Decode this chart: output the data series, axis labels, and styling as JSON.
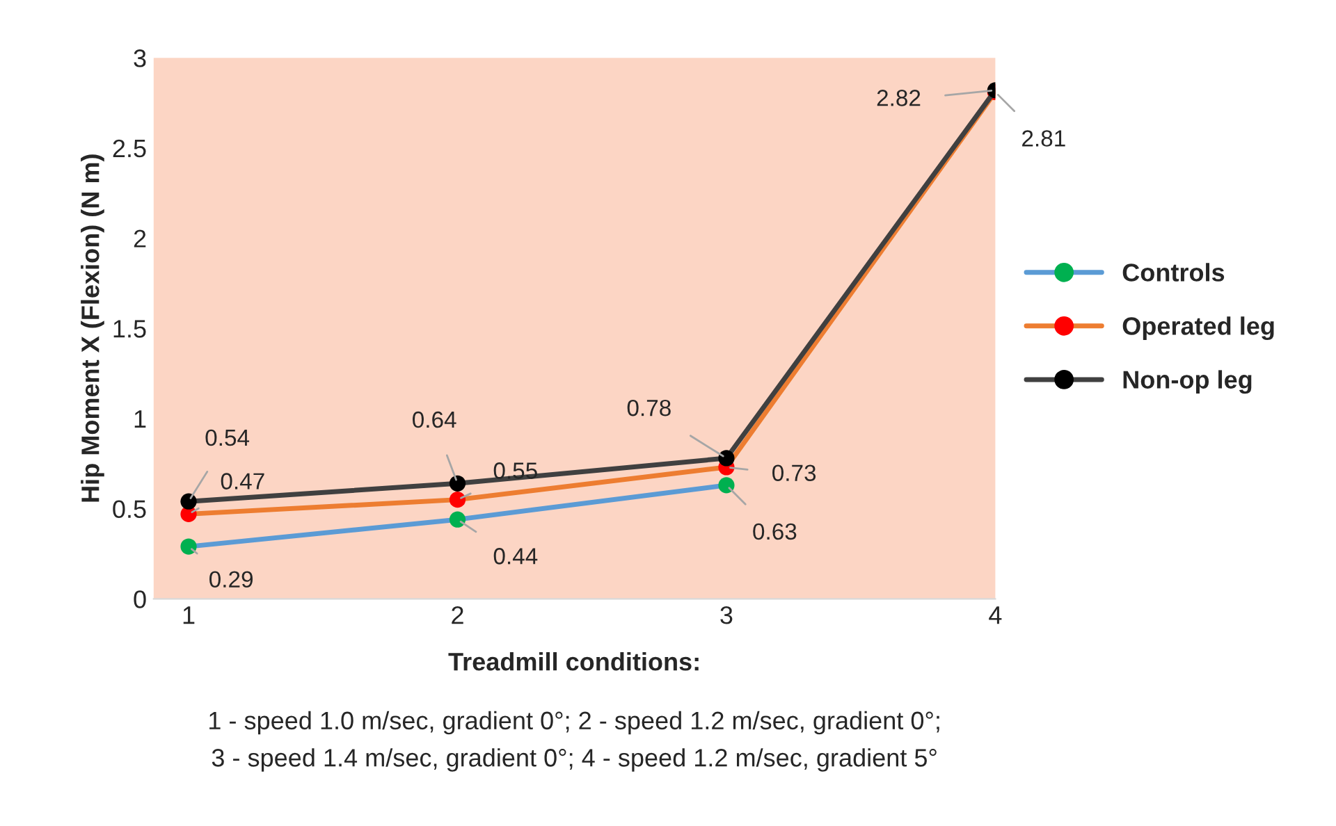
{
  "chart_data": {
    "type": "line",
    "categories": [
      "1",
      "2",
      "3",
      "4"
    ],
    "ylabel": "Hip Moment X (Flexion) (N m)",
    "xlabel": "Treadmill conditions:",
    "annotations": [
      "1 - speed 1.0 m/sec, gradient 0°; 2 - speed 1.2 m/sec, gradient 0°;",
      "3 - speed 1.4 m/sec, gradient 0°; 4 - speed 1.2 m/sec, gradient 5°"
    ],
    "ylim": [
      0,
      3
    ],
    "yticks": [
      0,
      0.5,
      1,
      1.5,
      2,
      2.5,
      3
    ],
    "grid": false,
    "legend": "right",
    "marker": "circle",
    "line_style": "solid",
    "series": [
      {
        "name": "Controls",
        "color": "#5b9bd5",
        "colors": [
          "#00b050",
          "#00b050",
          "#00b050",
          "#00b050"
        ],
        "values": [
          0.29,
          0.44,
          0.63,
          null
        ],
        "value_labels": [
          "0.29",
          "0.44",
          "0.63",
          null
        ]
      },
      {
        "name": "Operated leg",
        "color": "#ed7d31",
        "colors": [
          "#ff0000",
          "#ff0000",
          "#ff0000",
          "#ff0000"
        ],
        "values": [
          0.47,
          0.55,
          0.73,
          2.81
        ],
        "value_labels": [
          "0.47",
          "0.55",
          "0.73",
          "2.81"
        ]
      },
      {
        "name": "Non-op leg",
        "color": "#404040",
        "colors": [
          "#000000",
          "#000000",
          "#000000",
          "#000000"
        ],
        "values": [
          0.54,
          0.64,
          0.78,
          2.82
        ],
        "value_labels": [
          "0.54",
          "0.64",
          "0.78",
          "2.82"
        ]
      }
    ]
  }
}
